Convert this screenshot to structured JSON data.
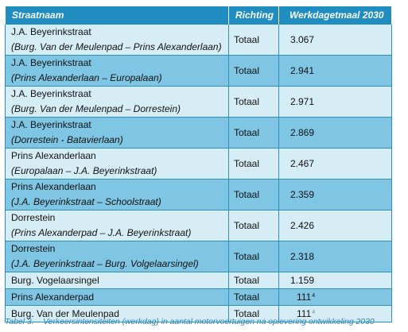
{
  "table": {
    "headers": {
      "street": "Straatnaam",
      "direction": "Richting",
      "volume": "Werkdagetmaal 2030"
    },
    "rows": [
      {
        "street": "J.A. Beyerinkstraat",
        "segment": "(Burg. Van der Meulenpad – Prins Alexanderlaan)",
        "direction": "Totaal",
        "value": "3.067"
      },
      {
        "street": "J.A. Beyerinkstraat",
        "segment": "(Prins Alexanderlaan – Europalaan)",
        "direction": "Totaal",
        "value": "2.941"
      },
      {
        "street": "J.A. Beyerinkstraat",
        "segment": "(Burg. Van der Meulenpad – Dorrestein)",
        "direction": "Totaal",
        "value": "2.971"
      },
      {
        "street": "J.A. Beyerinkstraat",
        "segment": "(Dorrestein - Batavierlaan)",
        "direction": "Totaal",
        "value": "2.869"
      },
      {
        "street": "Prins Alexanderlaan",
        "segment": "(Europalaan – J.A. Beyerinkstraat)",
        "direction": "Totaal",
        "value": "2.467"
      },
      {
        "street": "Prins Alexanderlaan",
        "segment": "(J.A. Beyerinkstraat – Schoolstraat)",
        "direction": "Totaal",
        "value": "2.359"
      },
      {
        "street": "Dorrestein",
        "segment": "(Prins Alexanderpad – J.A. Beyerinkstraat)",
        "direction": "Totaal",
        "value": "2.426"
      },
      {
        "street": "Dorrestein",
        "segment": "(J.A. Beyerinkstraat – Burg. Volgelaarsingel)",
        "direction": "Totaal",
        "value": "2.318"
      },
      {
        "street": "Burg. Vogelaarsingel",
        "direction": "Totaal",
        "value": "1.159"
      },
      {
        "street": "Prins Alexanderpad",
        "direction": "Totaal",
        "value": "111",
        "footnote": "4"
      },
      {
        "street": "Burg. Van der Meulenpad",
        "direction": "Totaal",
        "value": "111",
        "footnote": "4"
      }
    ]
  },
  "caption": "Tabel 3. – Verkeersintensiteiten (werkdag) in aantal motorvoertuigen na oplevering ontwikkeling 2030",
  "colors": {
    "header_bg": "#1f8dc0",
    "row_light": "#d7edf6",
    "row_dark": "#7fc6e4",
    "caption": "#2e86bc"
  }
}
